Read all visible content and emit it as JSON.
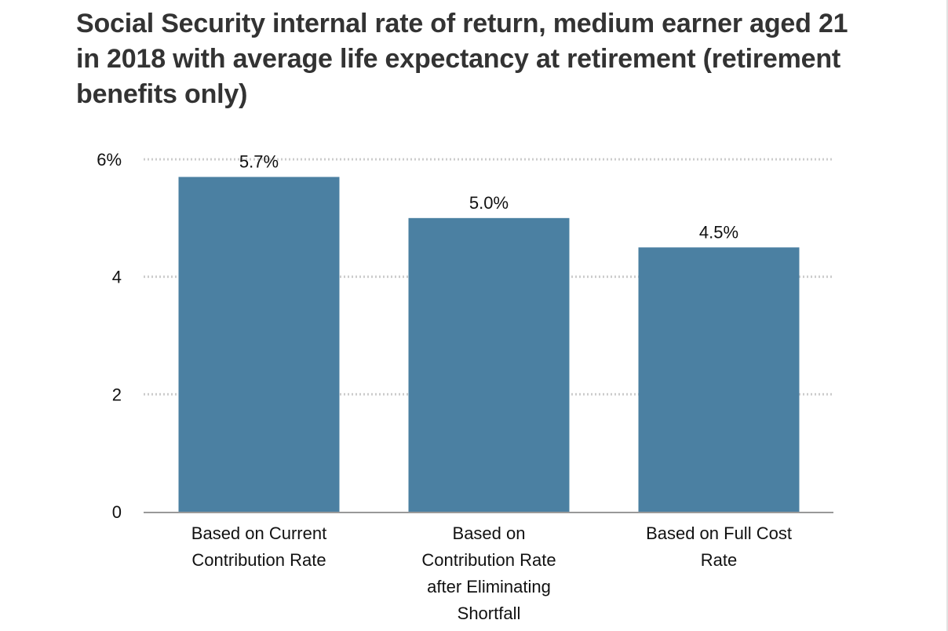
{
  "chart_data": {
    "type": "bar",
    "title": "Social Security internal rate of return, medium earner aged 21 in 2018 with average life expectancy at retirement (retirement benefits only)",
    "categories": [
      [
        "Based on Current",
        "Contribution Rate"
      ],
      [
        "Based on",
        "Contribution Rate",
        "after Eliminating",
        "Shortfall"
      ],
      [
        "Based on Full Cost",
        "Rate"
      ]
    ],
    "values": [
      5.7,
      5.0,
      4.5
    ],
    "data_labels": [
      "5.7%",
      "5.0%",
      "4.5%"
    ],
    "y_ticks": [
      {
        "value": 0,
        "label": "0"
      },
      {
        "value": 2,
        "label": "2"
      },
      {
        "value": 4,
        "label": "4"
      },
      {
        "value": 6,
        "label": "6%"
      }
    ],
    "ylim": [
      0,
      6
    ],
    "xlabel": "",
    "ylabel": "",
    "grid": true,
    "bar_color": "#4b80a2",
    "grid_color": "#cccccc",
    "axis_color": "#999999"
  }
}
